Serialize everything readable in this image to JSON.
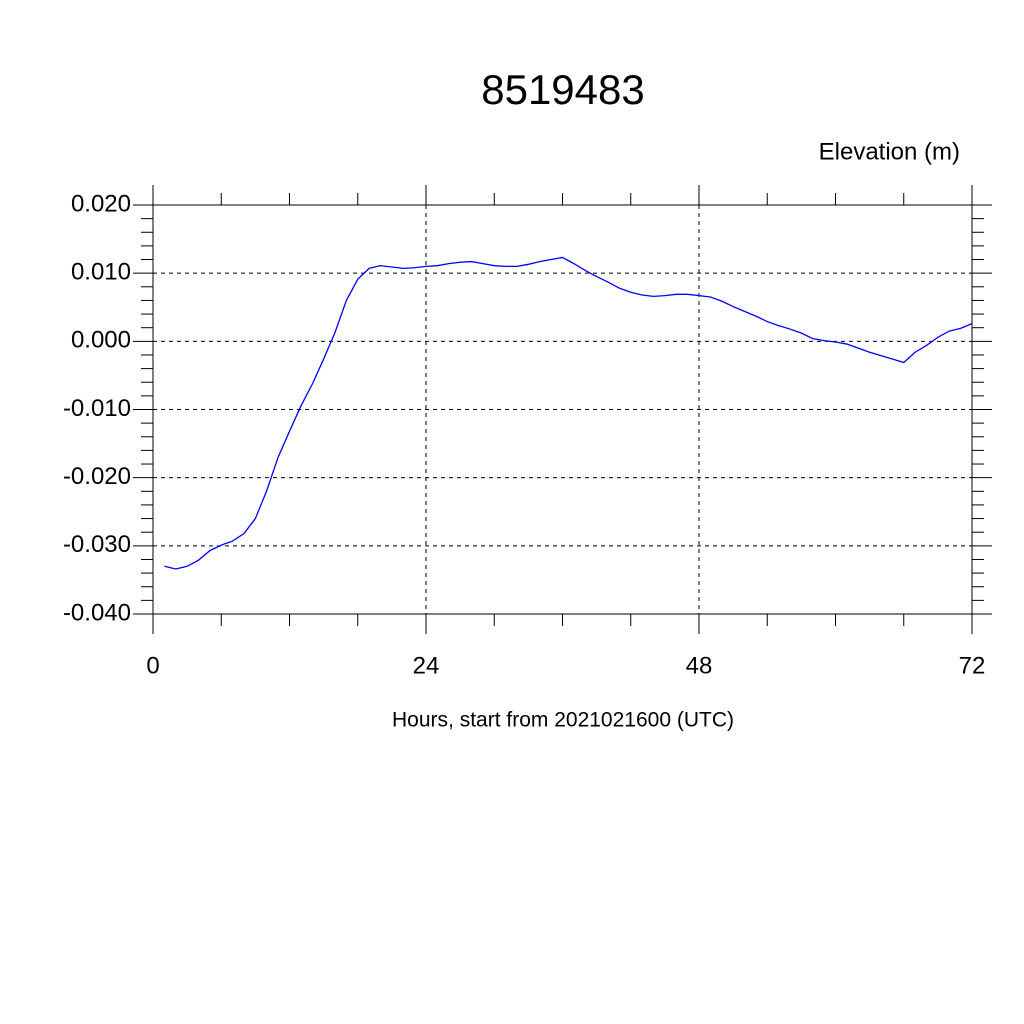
{
  "chart_data": {
    "type": "line",
    "title": "8519483",
    "subtitle": "Elevation (m)",
    "x_label": "Hours, start from 2021021600 (UTC)",
    "x": [
      1,
      2,
      3,
      4,
      5,
      6,
      7,
      8,
      9,
      10,
      11,
      12,
      13,
      14,
      15,
      16,
      17,
      18,
      19,
      20,
      21,
      22,
      23,
      24,
      25,
      26,
      27,
      28,
      29,
      30,
      31,
      32,
      33,
      34,
      35,
      36,
      37,
      38,
      39,
      40,
      41,
      42,
      43,
      44,
      45,
      46,
      47,
      48,
      49,
      50,
      51,
      52,
      53,
      54,
      55,
      56,
      57,
      58,
      59,
      60,
      61,
      62,
      63,
      64,
      65,
      66,
      67,
      68,
      69,
      70,
      71,
      72
    ],
    "series": [
      {
        "color": "#0000ff",
        "values": [
          -0.033,
          -0.0334,
          -0.033,
          -0.0321,
          -0.0307,
          -0.0299,
          -0.0293,
          -0.0282,
          -0.026,
          -0.0219,
          -0.017,
          -0.0132,
          -0.0095,
          -0.0063,
          -0.0026,
          0.0013,
          0.006,
          0.0091,
          0.0107,
          0.0111,
          0.0109,
          0.0107,
          0.0108,
          0.011,
          0.0111,
          0.0114,
          0.0116,
          0.0117,
          0.0114,
          0.0111,
          0.011,
          0.011,
          0.0113,
          0.0117,
          0.012,
          0.0123,
          0.0114,
          0.0104,
          0.0095,
          0.0087,
          0.0078,
          0.0072,
          0.0068,
          0.0066,
          0.0067,
          0.0069,
          0.0069,
          0.0067,
          0.0065,
          0.0059,
          0.0051,
          0.0044,
          0.0037,
          0.0029,
          0.0023,
          0.0018,
          0.0012,
          0.0004,
          0.0001,
          -0.0001,
          -0.0004,
          -0.001,
          -0.0016,
          -0.0021,
          -0.0026,
          -0.0031,
          -0.0016,
          -0.0006,
          0.0006,
          0.0015,
          0.0019,
          0.0026
        ]
      }
    ],
    "xlim": [
      0,
      72
    ],
    "xticks": [
      0,
      24,
      48,
      72
    ],
    "ylim": [
      -0.04,
      0.02
    ],
    "yticks": [
      {
        "value": -0.04,
        "label": "-0.040"
      },
      {
        "value": -0.03,
        "label": "-0.030"
      },
      {
        "value": -0.02,
        "label": "-0.020"
      },
      {
        "value": -0.01,
        "label": "-0.010"
      },
      {
        "value": 0,
        "label": "0.000"
      },
      {
        "value": 0.01,
        "label": "0.010"
      },
      {
        "value": 0.02,
        "label": "0.020"
      }
    ],
    "grid": true
  }
}
